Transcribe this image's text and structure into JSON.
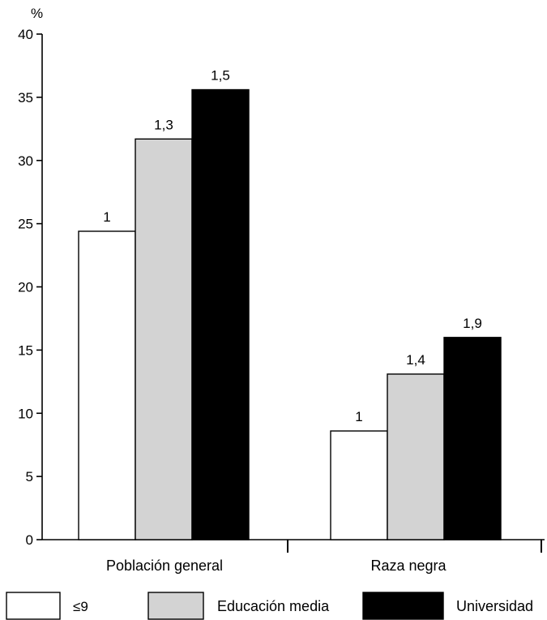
{
  "chart_data": {
    "type": "bar",
    "ylabel": "%",
    "ylim": [
      0,
      40
    ],
    "yticks": [
      "0",
      "5",
      "10",
      "15",
      "20",
      "25",
      "30",
      "35",
      "40"
    ],
    "categories": [
      "Población general",
      "Raza negra"
    ],
    "series": [
      {
        "name": "≤9",
        "color": "#ffffff",
        "values": [
          24.4,
          8.6
        ],
        "labels": [
          "1",
          "1"
        ]
      },
      {
        "name": "Educación media",
        "color": "#d3d3d3",
        "values": [
          31.7,
          13.1
        ],
        "labels": [
          "1,3",
          "1,4"
        ]
      },
      {
        "name": "Universidad",
        "color": "#000000",
        "values": [
          35.6,
          16.0
        ],
        "labels": [
          "1,5",
          "1,9"
        ]
      }
    ],
    "grid": false,
    "legend": "bottom"
  }
}
